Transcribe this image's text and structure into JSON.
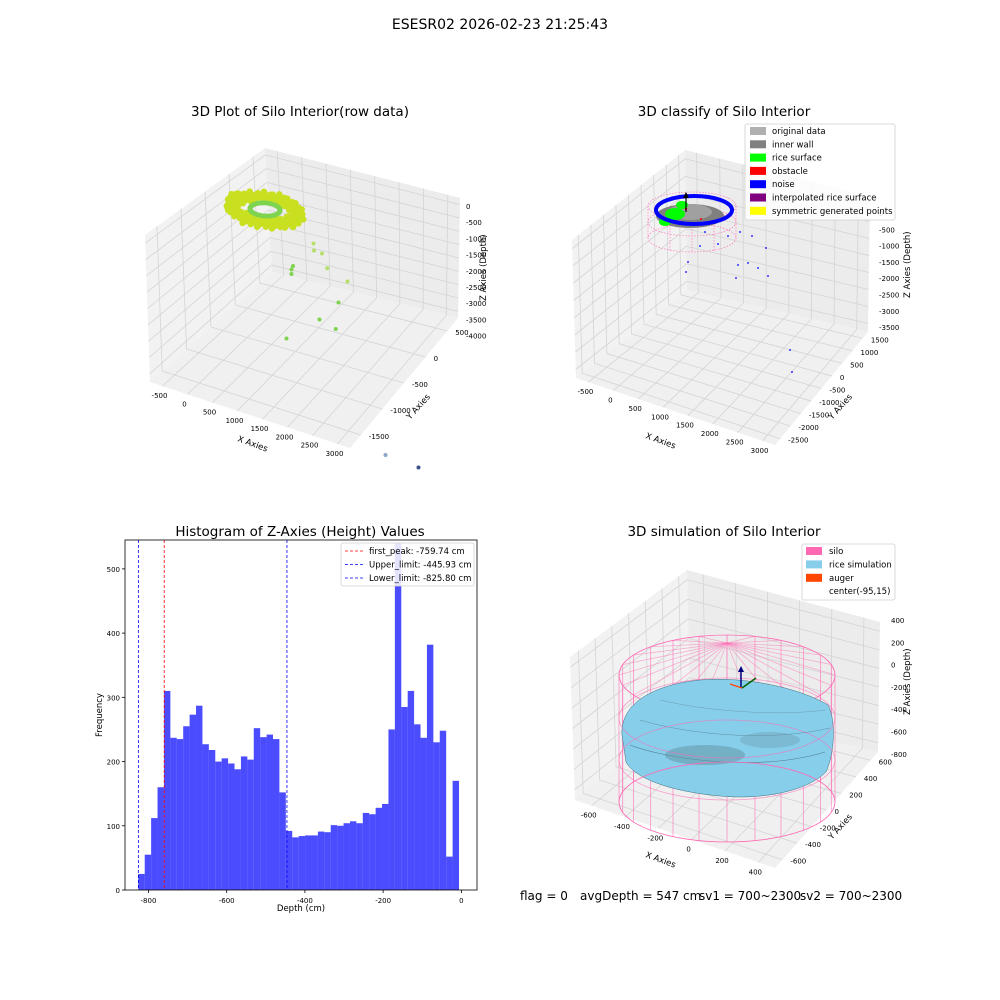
{
  "figure": {
    "suptitle": "ESESR02 2026-02-23 21:25:43",
    "status": {
      "flag": "flag = 0",
      "avg_depth": "avgDepth = 547 cm",
      "sv1": "sv1 = 700~2300",
      "sv2": "sv2 = 700~2300"
    }
  },
  "chart_data": [
    {
      "type": "scatter",
      "title": "3D Plot of Silo Interior(row data)",
      "projection": "3d",
      "xlabel": "X Axies",
      "ylabel": "Y Axies",
      "zlabel": "Z Axies (Depth)",
      "x_ticks": [
        "-500",
        "0",
        "500",
        "1000",
        "1500",
        "2000",
        "2500",
        "3000"
      ],
      "y_ticks": [
        "-1500",
        "-1000",
        "-500",
        "0",
        "500"
      ],
      "z_ticks": [
        "0",
        "-500",
        "-1000",
        "-1500",
        "-2000",
        "-2500",
        "-3000",
        "-3500",
        "-4000"
      ],
      "xlim": [
        -600,
        3200
      ],
      "ylim": [
        -1600,
        700
      ],
      "zlim": [
        -4100,
        150
      ],
      "colors": {
        "dense": "#c8e020",
        "mid": "#7ed34f",
        "low": "#3a9a8a",
        "deep": "#3b528b"
      },
      "clusters": [
        {
          "name": "rice surface ring",
          "x_center": 0,
          "y_center": 0,
          "radius": 550,
          "z_min": -200,
          "z_max": 0
        }
      ],
      "points": [
        {
          "x": 900,
          "y": -200,
          "z": -300
        },
        {
          "x": 1150,
          "y": -250,
          "z": -700
        },
        {
          "x": 1500,
          "y": -300,
          "z": -800
        },
        {
          "x": 800,
          "y": 100,
          "z": -800
        },
        {
          "x": 600,
          "y": 200,
          "z": -900
        },
        {
          "x": 1300,
          "y": -600,
          "z": -1500
        },
        {
          "x": 1550,
          "y": -600,
          "z": -1600
        },
        {
          "x": 1100,
          "y": -1000,
          "z": -1700
        },
        {
          "x": 200,
          "y": 300,
          "z": -1500
        },
        {
          "x": 100,
          "y": 400,
          "z": -1700
        },
        {
          "x": 100,
          "y": 400,
          "z": -1800
        },
        {
          "x": 900,
          "y": 300,
          "z": -2000
        },
        {
          "x": 2700,
          "y": -1100,
          "z": -3500
        },
        {
          "x": 2900,
          "y": -700,
          "z": -4000
        }
      ]
    },
    {
      "type": "scatter",
      "title": "3D classify of Silo Interior",
      "projection": "3d",
      "xlabel": "X Axies",
      "ylabel": "Y Axies",
      "zlabel": "Z Axies (Depth)",
      "x_ticks": [
        "-500",
        "0",
        "500",
        "1000",
        "1500",
        "2000",
        "2500",
        "3000"
      ],
      "y_ticks": [
        "-2500",
        "-2000",
        "-1500",
        "-1000",
        "-500",
        "0",
        "500",
        "1000",
        "1500"
      ],
      "z_ticks": [
        "0",
        "-500",
        "-1000",
        "-1500",
        "-2000",
        "-2500",
        "-3000",
        "-3500"
      ],
      "legend_position": "upper-right",
      "legend": [
        {
          "label": "original data",
          "color": "#b0b0b0"
        },
        {
          "label": "inner wall",
          "color": "#808080"
        },
        {
          "label": "rice surface",
          "color": "#00ff00"
        },
        {
          "label": "obstacle",
          "color": "#ff0000"
        },
        {
          "label": "noise",
          "color": "#0000ff"
        },
        {
          "label": "interpolated rice surface",
          "color": "#800080"
        },
        {
          "label": "symmetric generated points",
          "color": "#ffff00"
        }
      ],
      "silo_wireframe_color": "#ff69b4"
    },
    {
      "type": "bar",
      "title": "Histogram of Z-Axies (Height) Values",
      "xlabel": "Depth (cm)",
      "ylabel": "Frequency",
      "xlim": [
        -860,
        40
      ],
      "ylim": [
        0,
        545
      ],
      "x_ticks": [
        -800,
        -600,
        -400,
        -200,
        0
      ],
      "y_ticks": [
        0,
        100,
        200,
        300,
        400,
        500
      ],
      "bar_color": "#0000ff",
      "bar_alpha": 0.7,
      "bins_start": -826,
      "bin_width": 16.4,
      "values": [
        25,
        55,
        112,
        160,
        310,
        237,
        235,
        255,
        273,
        287,
        227,
        218,
        200,
        205,
        197,
        188,
        208,
        203,
        252,
        238,
        242,
        235,
        152,
        92,
        82,
        84,
        85,
        85,
        91,
        90,
        101,
        100,
        104,
        107,
        104,
        120,
        118,
        128,
        134,
        250,
        540,
        285,
        310,
        258,
        237,
        382,
        230,
        248,
        52,
        170
      ],
      "vlines": [
        {
          "label": "first_peak: -759.74 cm",
          "x": -759.74,
          "color": "#ff0000"
        },
        {
          "label": "Upper_limit: -445.93 cm",
          "x": -445.93,
          "color": "#0000ff"
        },
        {
          "label": "Lower_limit: -825.80 cm",
          "x": -825.8,
          "color": "#0000ff"
        }
      ],
      "legend_position": "upper-right"
    },
    {
      "type": "scatter",
      "title": "3D simulation of Silo Interior",
      "projection": "3d",
      "xlabel": "X Axies",
      "ylabel": "Y Axies",
      "zlabel": "Z Axies (Depth)",
      "x_ticks": [
        "-600",
        "-400",
        "-200",
        "0",
        "200",
        "400"
      ],
      "y_ticks": [
        "-600",
        "-400",
        "-200",
        "0",
        "200",
        "400",
        "600"
      ],
      "z_ticks": [
        "400",
        "200",
        "0",
        "-200",
        "-400",
        "-600",
        "-800"
      ],
      "legend_position": "upper-right",
      "legend": [
        {
          "label": "silo",
          "color": "#ff69b4"
        },
        {
          "label": "rice simulation",
          "color": "#87ceeb"
        },
        {
          "label": "auger",
          "color": "#ff4500"
        },
        {
          "label": "center(-95,15)",
          "color": ""
        }
      ]
    }
  ]
}
